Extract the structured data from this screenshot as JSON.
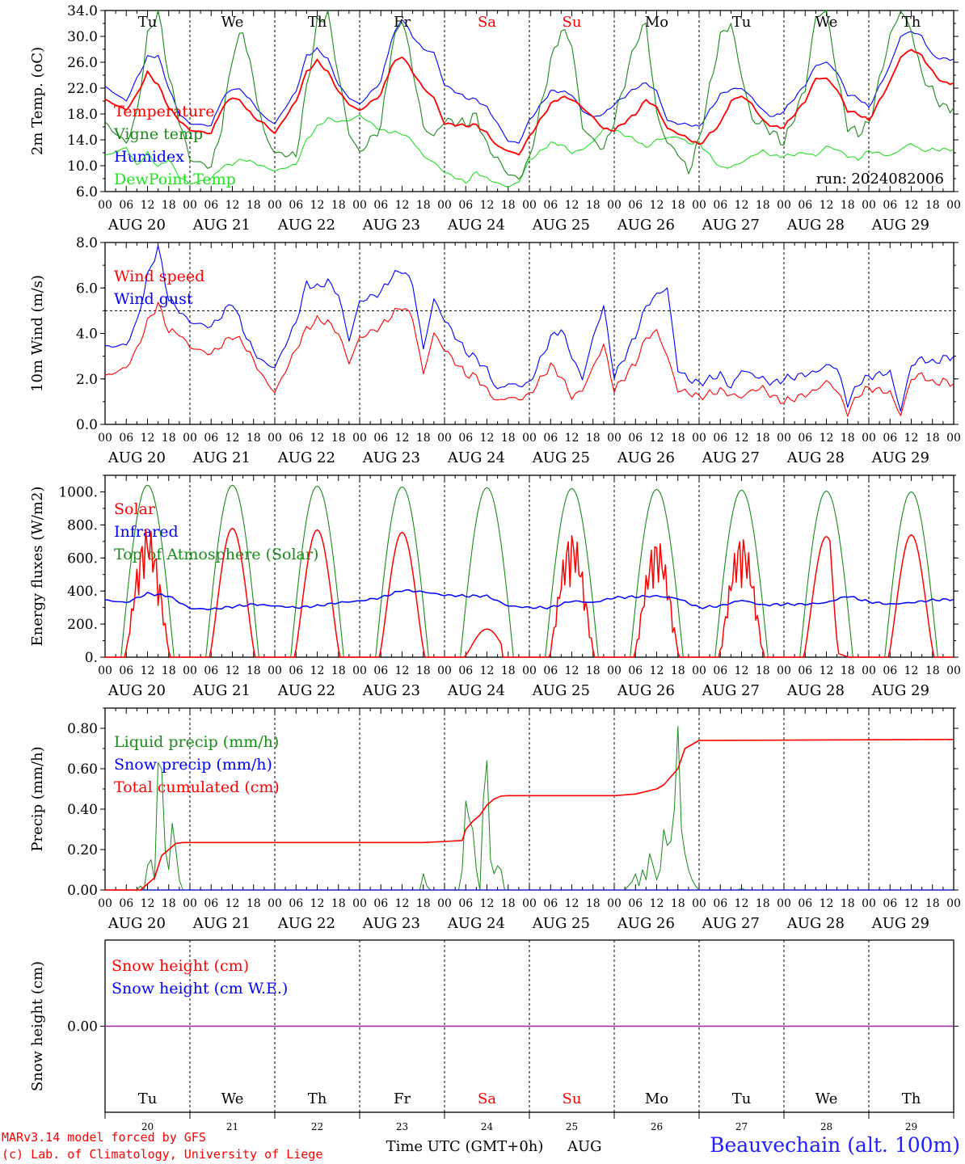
{
  "colors": {
    "red": "#ff0000",
    "green": "#1a8a1a",
    "blue": "#0000ff",
    "lime": "#22e022",
    "purple": "#a020a0",
    "black": "#000000",
    "station_blue": "#2020ff"
  },
  "time": {
    "hour_ticks": [
      "00",
      "06",
      "12",
      "18"
    ],
    "final_tick": "00",
    "day_labels": [
      "AUG 20",
      "AUG 21",
      "AUG 22",
      "AUG 23",
      "AUG 24",
      "AUG 25",
      "AUG 26",
      "AUG 27",
      "AUG 28",
      "AUG 29"
    ],
    "weekdays": [
      {
        "name": "Tu",
        "weekend": false
      },
      {
        "name": "We",
        "weekend": false
      },
      {
        "name": "Th",
        "weekend": false
      },
      {
        "name": "Fr",
        "weekend": false
      },
      {
        "name": "Sa",
        "weekend": true
      },
      {
        "name": "Su",
        "weekend": true
      },
      {
        "name": "Mo",
        "weekend": false
      },
      {
        "name": "Tu",
        "weekend": false
      },
      {
        "name": "We",
        "weekend": false
      },
      {
        "name": "Th",
        "weekend": false
      }
    ],
    "day_numbers": [
      "20",
      "21",
      "22",
      "23",
      "24",
      "25",
      "26",
      "27",
      "28",
      "29"
    ],
    "axis_title": "Time UTC (GMT+0h)",
    "month": "AUG"
  },
  "footer": {
    "credit1": "MARv3.14 model forced by GFS",
    "credit2": "(c) Lab. of Climatology, University of Liege",
    "station": "Beauvechain (alt. 100m)"
  },
  "chart_data": [
    {
      "type": "line",
      "ylabel": "2m Temp. (oC)",
      "ylim": [
        6,
        34
      ],
      "yticks": [
        "6.0",
        "10.0",
        "14.0",
        "18.0",
        "22.0",
        "26.0",
        "30.0",
        "34.0"
      ],
      "annotation": "run: 2024082006",
      "legend": [
        {
          "name": "Temperature",
          "color": "#ff0000"
        },
        {
          "name": "Vigne temp",
          "color": "#1a8a1a"
        },
        {
          "name": "Humidex",
          "color": "#0000ff"
        },
        {
          "name": "DewPoint Temp",
          "color": "#22e022"
        }
      ],
      "x_hours": [
        0,
        6,
        9,
        12,
        15,
        18,
        21,
        24,
        30,
        33,
        36,
        39,
        42,
        45,
        48,
        54,
        57,
        60,
        63,
        66,
        69,
        72,
        78,
        81,
        84,
        87,
        90,
        93,
        96,
        102,
        105,
        108,
        111,
        114,
        117,
        120,
        126,
        129,
        132,
        135,
        138,
        141,
        144,
        150,
        153,
        156,
        159,
        162,
        165,
        168,
        174,
        177,
        180,
        183,
        186,
        189,
        192,
        198,
        201,
        204,
        207,
        210,
        213,
        216,
        222,
        225,
        228,
        231,
        234,
        237,
        240
      ],
      "series": [
        {
          "name": "Temperature",
          "color": "#ff0000",
          "values": [
            20.2,
            18.6,
            21,
            24.4,
            22.5,
            19,
            17,
            15.5,
            15,
            18.8,
            20.7,
            19.6,
            17.5,
            16.5,
            15,
            20,
            24.5,
            26.2,
            24.5,
            21.5,
            19.5,
            18.5,
            21,
            25.5,
            27,
            24.5,
            22,
            20.5,
            16.5,
            16.2,
            16.3,
            15,
            13,
            12.3,
            11.7,
            14.5,
            19.5,
            20.6,
            20.3,
            19,
            17.5,
            15.7,
            15.5,
            18,
            20.2,
            19,
            15.8,
            15,
            14.2,
            13.2,
            16.5,
            20,
            20.8,
            19.5,
            17,
            16,
            16,
            20,
            23.5,
            23.5,
            21.8,
            18.5,
            18,
            17,
            23,
            26.8,
            28,
            27,
            24.5,
            22.8,
            22.8
          ]
        },
        {
          "name": "Vigne temp",
          "color": "#1a8a1a",
          "values": [
            16.5,
            13.5,
            18,
            30,
            34,
            24,
            17,
            11,
            9.8,
            16,
            27,
            31,
            23,
            15,
            12,
            11.5,
            22,
            32,
            33.5,
            24,
            15,
            12,
            16,
            28,
            33,
            25,
            16,
            14.5,
            17,
            16.5,
            17.8,
            13,
            11,
            8.7,
            8,
            11,
            26,
            31,
            29,
            16,
            14,
            12.5,
            17,
            29,
            32,
            18,
            13.5,
            12,
            9,
            14,
            30,
            32,
            24,
            17,
            16.5,
            15,
            13.5,
            22,
            33,
            34,
            24,
            16,
            15,
            16.5,
            30,
            34,
            31,
            24,
            21.5,
            19,
            19
          ]
        },
        {
          "name": "Humidex",
          "color": "#0000ff",
          "values": [
            22.2,
            20,
            23.5,
            26.8,
            27,
            22,
            18,
            16.5,
            16.2,
            20.2,
            22,
            21.5,
            19.5,
            17.5,
            16.5,
            21.5,
            27,
            28,
            26.5,
            22.5,
            20.5,
            19.5,
            23,
            29.5,
            32.8,
            30,
            28,
            27.5,
            22.5,
            20.5,
            20.2,
            19,
            16.5,
            13.8,
            13.5,
            17,
            21.5,
            21.5,
            21,
            18.5,
            17.5,
            18,
            19.5,
            22,
            22.8,
            21.5,
            17,
            16.5,
            16.4,
            16,
            21,
            21.8,
            22,
            20.5,
            18.5,
            17.5,
            18.5,
            22.5,
            25.5,
            26,
            24.5,
            21,
            20.5,
            19,
            25.5,
            30,
            30.8,
            30,
            27,
            26.5,
            26.5
          ]
        },
        {
          "name": "DewPoint Temp",
          "color": "#22e022",
          "values": [
            11.5,
            12.8,
            10,
            12,
            9.8,
            11,
            8.3,
            7.2,
            8,
            9.8,
            10.3,
            11,
            10.5,
            9.8,
            9.2,
            10.2,
            14,
            16,
            17.3,
            16.8,
            17,
            17.8,
            15.5,
            15.2,
            15,
            13.8,
            11.5,
            10.5,
            9,
            7.4,
            9,
            8,
            7.3,
            6.7,
            7.5,
            10.8,
            13.5,
            13.3,
            12,
            12.5,
            13.7,
            15.7,
            15.5,
            14,
            12.8,
            14,
            14.3,
            14.5,
            13.5,
            13.5,
            9.7,
            9.8,
            10.5,
            11.5,
            12.3,
            11.5,
            11.5,
            12,
            11.5,
            13,
            12.5,
            11.5,
            11,
            12.3,
            11.5,
            12.5,
            13.5,
            12.3,
            12.5,
            12.5,
            12.5
          ]
        }
      ]
    },
    {
      "type": "line",
      "ylabel": "10m Wind (m/s)",
      "ylim": [
        0,
        8
      ],
      "yticks": [
        "0.0",
        "2.0",
        "4.0",
        "6.0",
        "8.0"
      ],
      "reference_line": 5,
      "legend": [
        {
          "name": "Wind speed",
          "color": "#ff0000"
        },
        {
          "name": "Wind gust",
          "color": "#0000ff"
        }
      ],
      "x_hours": [
        0,
        6,
        9,
        12,
        15,
        18,
        21,
        24,
        30,
        33,
        36,
        39,
        42,
        45,
        48,
        54,
        57,
        60,
        63,
        66,
        69,
        72,
        78,
        81,
        84,
        87,
        90,
        93,
        96,
        102,
        105,
        108,
        111,
        114,
        117,
        120,
        126,
        129,
        132,
        135,
        138,
        141,
        144,
        150,
        153,
        156,
        159,
        162,
        165,
        168,
        174,
        177,
        180,
        183,
        186,
        189,
        192,
        198,
        201,
        204,
        207,
        210,
        213,
        216,
        222,
        225,
        228,
        231,
        234,
        237,
        240
      ],
      "series": [
        {
          "name": "Wind speed",
          "color": "#ff0000",
          "values": [
            2.1,
            2.5,
            3.3,
            4.5,
            5.3,
            4.1,
            4,
            3.4,
            3.1,
            3.5,
            3.9,
            3.6,
            2.8,
            2,
            1.4,
            3.3,
            4.2,
            4.6,
            4.5,
            4,
            2.7,
            3.8,
            4.3,
            4.8,
            5.2,
            4.7,
            2.2,
            4,
            3.3,
            2.2,
            2.1,
            1.5,
            1,
            1.2,
            1.1,
            1.3,
            2.6,
            2.1,
            1.2,
            1.5,
            2.5,
            3.5,
            1.5,
            2.7,
            3.8,
            4.1,
            3,
            1.5,
            1.4,
            1.2,
            1.5,
            1.3,
            1.2,
            1.5,
            1.6,
            1.2,
            1,
            1.3,
            1.5,
            1.9,
            1.5,
            0.5,
            1.3,
            1.6,
            1.4,
            0.4,
            2,
            2.2,
            1.8,
            1.9,
            1.8
          ]
        },
        {
          "name": "Wind gust",
          "color": "#0000ff",
          "values": [
            3.4,
            3.5,
            4.5,
            6.5,
            7.8,
            5.5,
            5,
            4.5,
            4.3,
            4.8,
            5.4,
            4.2,
            3.2,
            2.7,
            2.5,
            4.5,
            6.2,
            6,
            6.3,
            5.7,
            3.7,
            5.4,
            5.8,
            6.5,
            6.8,
            6.2,
            3.3,
            5.5,
            4.6,
            3.2,
            2.9,
            2.4,
            1.5,
            1.8,
            1.7,
            1.8,
            3.8,
            4.2,
            3,
            2,
            3.8,
            5.2,
            2.1,
            3.9,
            5.2,
            5.7,
            6,
            2.4,
            2,
            1.8,
            2.2,
            1.6,
            2.4,
            2.2,
            2,
            1.8,
            2,
            2.2,
            2.3,
            2.6,
            2.5,
            0.9,
            1.8,
            2.1,
            2.3,
            0.6,
            2.6,
            2.9,
            2.7,
            2.9,
            3
          ]
        }
      ]
    },
    {
      "type": "line",
      "ylabel": "Energy fluxes (W/m2)",
      "ylim": [
        0,
        1100
      ],
      "yticks": [
        "0.",
        "200.",
        "400.",
        "600.",
        "800.",
        "1000."
      ],
      "legend": [
        {
          "name": "Solar",
          "color": "#ff0000"
        },
        {
          "name": "Infrared",
          "color": "#0000ff"
        },
        {
          "name": "Top of Atmosphere (Solar)",
          "color": "#1a8a1a"
        }
      ],
      "toa_daily_peak": [
        1040,
        1040,
        1035,
        1030,
        1025,
        1020,
        1015,
        1010,
        1005,
        1000
      ],
      "solar_daily_peak": [
        790,
        780,
        770,
        755,
        170,
        760,
        720,
        740,
        730,
        740
      ],
      "solar_daily_kind": [
        "spiky",
        "smooth",
        "smooth",
        "smooth",
        "low",
        "spiky",
        "spiky",
        "spiky",
        "early",
        "smooth"
      ],
      "infrared_x_hours": [
        0,
        6,
        12,
        18,
        24,
        30,
        36,
        42,
        48,
        54,
        60,
        66,
        72,
        78,
        84,
        90,
        96,
        102,
        108,
        114,
        120,
        126,
        132,
        138,
        144,
        150,
        156,
        162,
        168,
        174,
        180,
        186,
        192,
        198,
        204,
        210,
        216,
        222,
        228,
        234,
        240
      ],
      "infrared_values": [
        345,
        330,
        385,
        370,
        295,
        290,
        305,
        320,
        310,
        300,
        310,
        330,
        340,
        360,
        405,
        395,
        375,
        370,
        370,
        310,
        300,
        300,
        340,
        330,
        360,
        365,
        370,
        355,
        300,
        310,
        345,
        315,
        320,
        320,
        330,
        370,
        335,
        320,
        330,
        345,
        350
      ]
    },
    {
      "type": "line",
      "ylabel": "Precip (mm/h)",
      "ylim": [
        0,
        0.9
      ],
      "yticks": [
        "0.00",
        "0.20",
        "0.40",
        "0.60",
        "0.80"
      ],
      "legend": [
        {
          "name": "Liquid precip (mm/h)",
          "color": "#1a8a1a"
        },
        {
          "name": "Snow precip (mm/h)",
          "color": "#0000ff"
        },
        {
          "name": "Total cumulated (cm)",
          "color": "#ff0000"
        }
      ],
      "liquid_events": [
        {
          "hour": 10,
          "value": 0.02
        },
        {
          "hour": 12,
          "value": 0.12
        },
        {
          "hour": 13,
          "value": 0.15
        },
        {
          "hour": 14,
          "value": 0.05
        },
        {
          "hour": 15,
          "value": 0.63
        },
        {
          "hour": 16,
          "value": 0.6
        },
        {
          "hour": 17,
          "value": 0.2
        },
        {
          "hour": 18,
          "value": 0.1
        },
        {
          "hour": 19,
          "value": 0.33
        },
        {
          "hour": 20,
          "value": 0.2
        },
        {
          "hour": 21,
          "value": 0.05
        },
        {
          "hour": 90,
          "value": 0.08
        },
        {
          "hour": 91,
          "value": 0.02
        },
        {
          "hour": 101,
          "value": 0.1
        },
        {
          "hour": 102,
          "value": 0.44
        },
        {
          "hour": 103,
          "value": 0.35
        },
        {
          "hour": 104,
          "value": 0.3
        },
        {
          "hour": 105,
          "value": 0.1
        },
        {
          "hour": 107,
          "value": 0.45
        },
        {
          "hour": 108,
          "value": 0.64
        },
        {
          "hour": 109,
          "value": 0.15
        },
        {
          "hour": 110,
          "value": 0.08
        },
        {
          "hour": 111,
          "value": 0.12
        },
        {
          "hour": 112,
          "value": 0.1
        },
        {
          "hour": 148,
          "value": 0.02
        },
        {
          "hour": 149,
          "value": 0.04
        },
        {
          "hour": 150,
          "value": 0.08
        },
        {
          "hour": 151,
          "value": 0.02
        },
        {
          "hour": 152,
          "value": 0.1
        },
        {
          "hour": 153,
          "value": 0.05
        },
        {
          "hour": 154,
          "value": 0.18
        },
        {
          "hour": 155,
          "value": 0.12
        },
        {
          "hour": 156,
          "value": 0.05
        },
        {
          "hour": 157,
          "value": 0.1
        },
        {
          "hour": 158,
          "value": 0.3
        },
        {
          "hour": 159,
          "value": 0.22
        },
        {
          "hour": 160,
          "value": 0.24
        },
        {
          "hour": 161,
          "value": 0.4
        },
        {
          "hour": 162,
          "value": 0.81
        },
        {
          "hour": 163,
          "value": 0.3
        },
        {
          "hour": 164,
          "value": 0.18
        },
        {
          "hour": 165,
          "value": 0.1
        },
        {
          "hour": 166,
          "value": 0.05
        },
        {
          "hour": 167,
          "value": 0.02
        },
        {
          "hour": 180,
          "value": 0.01
        }
      ],
      "cumulated_x_hours": [
        0,
        10,
        12,
        14,
        16,
        18,
        20,
        22,
        24,
        90,
        96,
        101,
        102,
        104,
        106,
        108,
        110,
        112,
        114,
        120,
        144,
        150,
        156,
        158,
        160,
        162,
        164,
        168,
        240
      ],
      "cumulated_values": [
        0,
        0,
        0.03,
        0.06,
        0.17,
        0.2,
        0.23,
        0.235,
        0.235,
        0.235,
        0.24,
        0.245,
        0.3,
        0.34,
        0.37,
        0.42,
        0.45,
        0.465,
        0.467,
        0.467,
        0.467,
        0.475,
        0.5,
        0.52,
        0.56,
        0.6,
        0.7,
        0.74,
        0.745
      ]
    },
    {
      "type": "line",
      "ylabel": "Snow height (cm)",
      "ylim": [
        -1,
        1
      ],
      "yticks": [
        "0.00"
      ],
      "legend": [
        {
          "name": "Snow height (cm)",
          "color": "#ff0000"
        },
        {
          "name": "Snow height (cm W.E.)",
          "color": "#0000ff"
        }
      ],
      "series": [
        {
          "name": "Snow height",
          "color": "#a020a0",
          "values": [
            0,
            0
          ]
        }
      ]
    }
  ]
}
